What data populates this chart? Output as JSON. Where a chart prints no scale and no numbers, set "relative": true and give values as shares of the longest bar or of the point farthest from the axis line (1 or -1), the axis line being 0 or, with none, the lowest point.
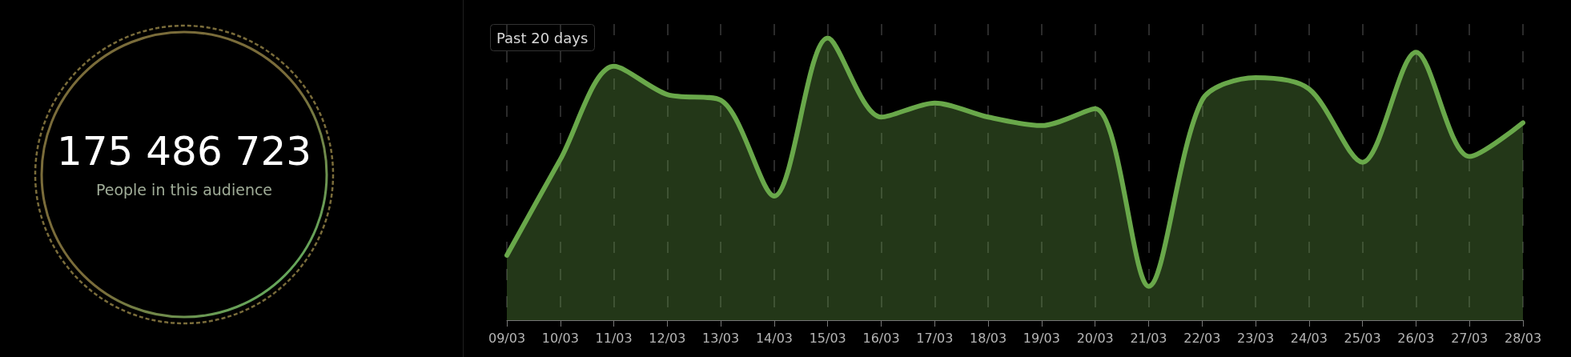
{
  "chart_data": [
    {
      "type": "other",
      "title": "175 486 723",
      "subtitle": "People in this audience"
    },
    {
      "type": "area",
      "title": "Past 20 days",
      "relative": true,
      "categories": [
        "09/03",
        "10/03",
        "11/03",
        "12/03",
        "13/03",
        "14/03",
        "15/03",
        "16/03",
        "17/03",
        "18/03",
        "19/03",
        "20/03",
        "21/03",
        "22/03",
        "23/03",
        "24/03",
        "25/03",
        "26/03",
        "27/03",
        "28/03"
      ],
      "series": [
        {
          "color": "#69a84a",
          "values": [
            0.23,
            0.57,
            0.9,
            0.8,
            0.78,
            0.44,
            1,
            0.72,
            0.77,
            0.72,
            0.69,
            0.75,
            0.12,
            0.78,
            0.86,
            0.82,
            0.56,
            0.95,
            0.58,
            0.7
          ]
        }
      ],
      "grid": "x",
      "tick_labels": "x",
      "marker": "none",
      "line_style": "solid"
    }
  ]
}
